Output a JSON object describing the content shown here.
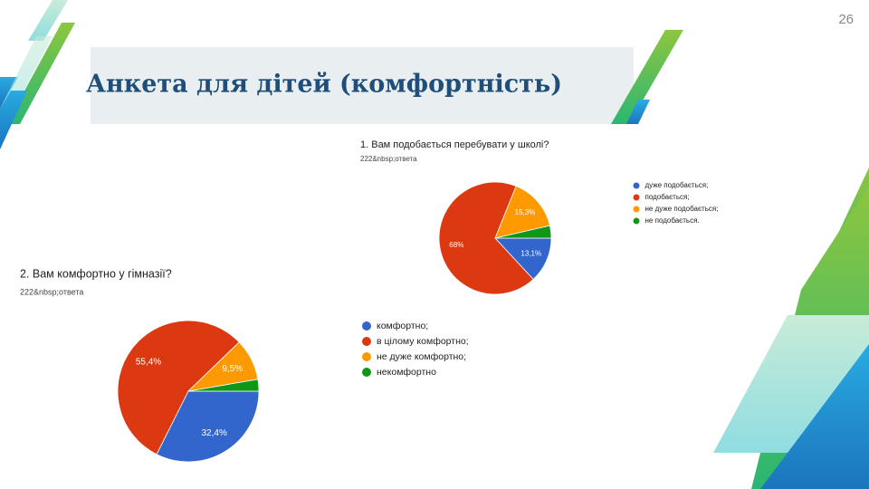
{
  "slide": {
    "title": "Анкета для дітей (комфортність)",
    "page_number": "26"
  },
  "chart_data": [
    {
      "type": "pie",
      "title": "1. Вам подобається перебувати у школі?",
      "subtitle": "222&nbsp;ответа",
      "categories": [
        "дуже подобається;",
        "подобається;",
        "не дуже подобається;",
        "не подобається."
      ],
      "values": [
        13.1,
        68,
        15.3,
        3.6
      ],
      "value_labels": [
        "13,1%",
        "68%",
        "15,3%",
        null
      ],
      "colors": [
        "#3366cc",
        "#dc3912",
        "#ff9900",
        "#109618"
      ]
    },
    {
      "type": "pie",
      "title": "2. Вам комфортно у  гімназії?",
      "subtitle": "222&nbsp;ответа",
      "categories": [
        "комфортно;",
        "в цілому комфортно;",
        "не дуже комфортно;",
        "некомфортно"
      ],
      "values": [
        32.4,
        55.4,
        9.5,
        2.7
      ],
      "value_labels": [
        "32,4%",
        "55,4%",
        "9,5%",
        null
      ],
      "colors": [
        "#3366cc",
        "#dc3912",
        "#ff9900",
        "#109618"
      ]
    }
  ]
}
